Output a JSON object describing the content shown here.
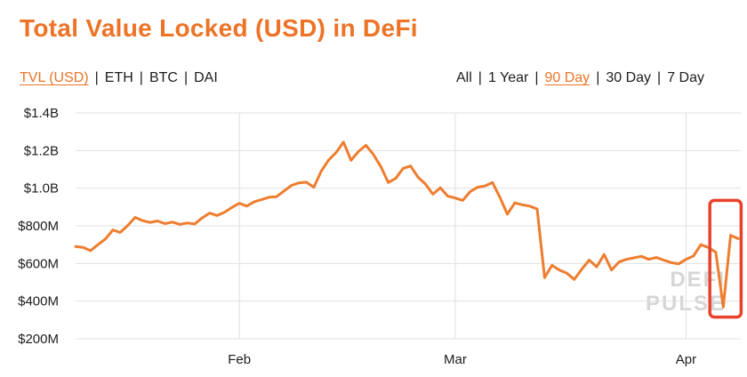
{
  "header": {
    "title": "Total Value Locked (USD) in DeFi"
  },
  "separator": "|",
  "metric_tabs": [
    {
      "label": "TVL (USD)",
      "active": true
    },
    {
      "label": "ETH",
      "active": false
    },
    {
      "label": "BTC",
      "active": false
    },
    {
      "label": "DAI",
      "active": false
    }
  ],
  "range_tabs": [
    {
      "label": "All",
      "active": false
    },
    {
      "label": "1 Year",
      "active": false
    },
    {
      "label": "90 Day",
      "active": true
    },
    {
      "label": "30 Day",
      "active": false
    },
    {
      "label": "7 Day",
      "active": false
    }
  ],
  "watermark": {
    "line1": "DEFI",
    "line2": "PULSE"
  },
  "colors": {
    "accent": "#ed7327",
    "line": "#ee7d2f",
    "text": "#1c1c1e",
    "grid": "#e0e0e0",
    "watermark": "#d6d6d6",
    "annotation": "#e8422c"
  },
  "chart_data": {
    "type": "line",
    "title": "Total Value Locked (USD) in DeFi",
    "series_name": "TVL (USD)",
    "values_unit": "USD millions",
    "xlabel": "",
    "ylabel": "",
    "grid": true,
    "ylim": [
      200,
      1400
    ],
    "y_ticks": [
      {
        "label": "$1.4B",
        "value": 1400
      },
      {
        "label": "$1.2B",
        "value": 1200
      },
      {
        "label": "$1.0B",
        "value": 1000
      },
      {
        "label": "$800M",
        "value": 800
      },
      {
        "label": "$600M",
        "value": 600
      },
      {
        "label": "$400M",
        "value": 400
      },
      {
        "label": "$200M",
        "value": 200
      }
    ],
    "x_ticks": [
      {
        "label": "Feb",
        "day": 22
      },
      {
        "label": "Mar",
        "day": 51
      },
      {
        "label": "Apr",
        "day": 82
      }
    ],
    "values": [
      690,
      685,
      668,
      700,
      730,
      778,
      765,
      802,
      845,
      828,
      818,
      826,
      812,
      820,
      808,
      815,
      810,
      842,
      868,
      855,
      872,
      898,
      920,
      905,
      928,
      940,
      952,
      955,
      985,
      1015,
      1028,
      1032,
      1005,
      1090,
      1150,
      1190,
      1245,
      1148,
      1195,
      1228,
      1180,
      1115,
      1030,
      1052,
      1105,
      1118,
      1058,
      1022,
      968,
      1002,
      958,
      948,
      935,
      982,
      1005,
      1012,
      1030,
      952,
      862,
      922,
      912,
      905,
      890,
      525,
      590,
      565,
      548,
      515,
      570,
      618,
      582,
      648,
      565,
      608,
      622,
      630,
      638,
      622,
      632,
      618,
      605,
      598,
      622,
      640,
      700,
      685,
      660,
      368,
      750,
      732
    ],
    "annotation": {
      "type": "highlight-box",
      "day_start": 85.2,
      "day_end": 89.4,
      "value_low": 315,
      "value_high": 935
    }
  }
}
